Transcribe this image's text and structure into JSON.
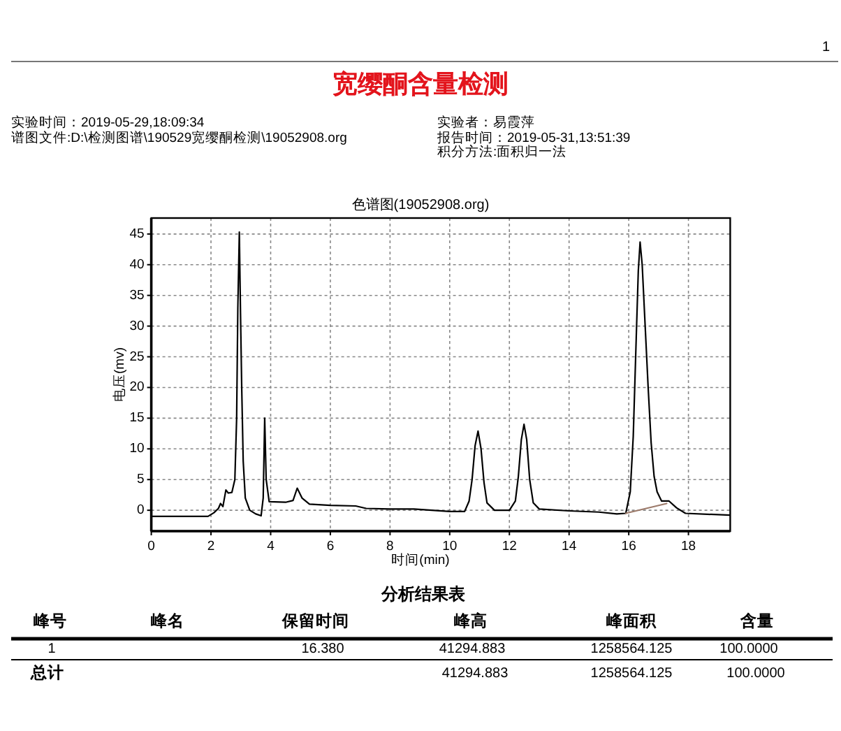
{
  "chart_data": {
    "type": "line",
    "title": "宽缨酮含量检测",
    "subtitle": "色谱图(19052908.org)",
    "xlabel": "时间(min)",
    "ylabel": "电压(mv)",
    "annotations": [
      "1",
      "实验时间：2019-05-29,18:09:34",
      "谱图文件:D:\\检测图谱\\190529宽缨酮检测\\19052908.org",
      "实验者：易霞萍",
      "报告时间：2019-05-31,13:51:39",
      "积分方法:面积归一法",
      "分析结果表",
      "峰号",
      "峰名",
      "保留时间",
      "峰高",
      "峰面积",
      "含量",
      "1",
      "16.380",
      "41294.883",
      "1258564.125",
      "100.0000",
      "总计",
      "41294.883",
      "1258564.125",
      "100.0000"
    ],
    "series": [
      {
        "color": "#000000",
        "x": [
          0,
          1.9,
          2.1,
          2.25,
          2.32,
          2.4,
          2.5,
          2.58,
          2.7,
          2.8,
          2.86,
          2.9,
          2.95,
          2.99,
          3.03,
          3.08,
          3.15,
          3.3,
          3.5,
          3.68,
          3.75,
          3.8,
          3.85,
          3.95,
          4.5,
          4.75,
          4.89,
          5.05,
          5.3,
          6.0,
          6.85,
          7.2,
          8.0,
          8.8,
          10.0,
          10.5,
          10.65,
          10.75,
          10.85,
          10.95,
          11.05,
          11.15,
          11.25,
          11.5,
          12.0,
          12.2,
          12.3,
          12.4,
          12.49,
          12.58,
          12.68,
          12.8,
          13.0,
          14.0,
          15.0,
          15.6,
          15.9,
          16.05,
          16.15,
          16.25,
          16.32,
          16.38,
          16.45,
          16.55,
          16.65,
          16.75,
          16.85,
          16.95,
          17.1,
          17.35,
          17.6,
          17.9,
          19.4
        ],
        "values": [
          -1.0,
          -1.0,
          -0.4,
          0.3,
          1.1,
          0.6,
          3.3,
          2.8,
          2.9,
          5.0,
          15,
          33,
          45.3,
          32,
          20,
          8,
          2.0,
          0.0,
          -0.6,
          -0.9,
          2,
          15.0,
          5,
          1.4,
          1.3,
          1.6,
          3.6,
          2.0,
          1.0,
          0.8,
          0.7,
          0.3,
          0.2,
          0.2,
          -0.2,
          -0.2,
          1.5,
          5,
          10.5,
          12.9,
          10,
          4.5,
          1.2,
          0.0,
          0.0,
          1.5,
          5.5,
          11.5,
          14.0,
          11.5,
          5,
          1.2,
          0.2,
          -0.1,
          -0.3,
          -0.6,
          -0.5,
          3,
          12,
          28,
          39,
          43.7,
          40,
          30,
          20,
          11,
          5.5,
          3,
          1.5,
          1.5,
          0.4,
          -0.5,
          -0.8
        ]
      },
      {
        "type": "line",
        "color": "#9c7a6a",
        "x": [
          15.9,
          17.27
        ],
        "values": [
          -0.5,
          1.1
        ]
      }
    ],
    "xlim": [
      0,
      19.4
    ],
    "ylim": [
      -3.4,
      47.6
    ],
    "xticks": [
      0,
      2,
      4,
      6,
      8,
      10,
      12,
      14,
      16,
      18
    ],
    "yticks": [
      0,
      5,
      10,
      15,
      20,
      25,
      30,
      35,
      40,
      45
    ],
    "grid": true
  }
}
